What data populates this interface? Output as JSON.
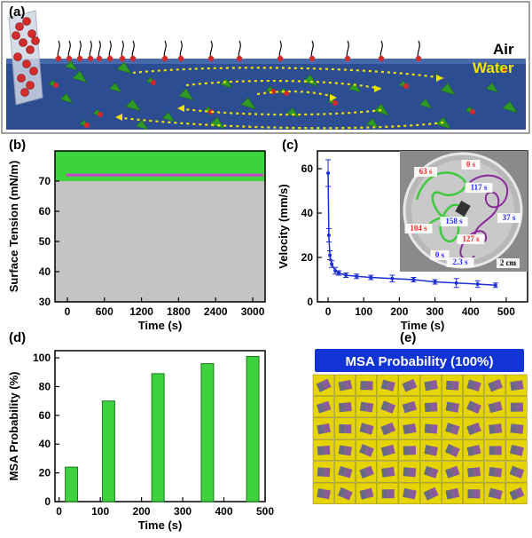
{
  "panels": {
    "a": {
      "letter": "(a)",
      "air_label": "Air",
      "water_label": "Water",
      "colors": {
        "water": "#2b4c8f",
        "air": "#ffffff",
        "air_text": "#000000",
        "water_text": "#f2e200",
        "arrow": "#f2e200",
        "particle": "#2f9a25",
        "head": "#d12b2b"
      }
    },
    "b": {
      "letter": "(b)"
    },
    "c": {
      "letter": "(c)",
      "inset_labels": [
        "63 s",
        "0 s",
        "117 s",
        "37 s",
        "158 s",
        "104 s",
        "127 s",
        "0 s",
        "2.3 s",
        "2 cm"
      ]
    },
    "d": {
      "letter": "(d)"
    },
    "e": {
      "letter": "(e)",
      "title": "MSA Probability (100%)",
      "grid_rows": 6,
      "grid_cols": 10,
      "colors": {
        "title_bg": "#1233d6",
        "title_text": "#ffffff",
        "cell": "#e6d400"
      }
    }
  },
  "chart_data": [
    {
      "panel": "b",
      "type": "line",
      "xlabel": "Time (s)",
      "ylabel": "Surface Tension (mN/m)",
      "xlim": [
        -200,
        3200
      ],
      "ylim": [
        30,
        80
      ],
      "xticks": [
        0,
        600,
        1200,
        1800,
        2400,
        3000
      ],
      "yticks": [
        30,
        40,
        50,
        60,
        70
      ],
      "band": [
        70,
        80
      ],
      "series": [
        {
          "x": [
            0,
            300,
            600,
            900,
            1200,
            1500,
            1800,
            2100,
            2400,
            2700,
            3000,
            3150
          ],
          "y": [
            72,
            72,
            72,
            72,
            72,
            72,
            72,
            72,
            72,
            72,
            72,
            72
          ]
        }
      ],
      "colors": {
        "band": "#3dd33d",
        "below": "#c4c4c4",
        "line": "#cc44cc"
      }
    },
    {
      "panel": "c",
      "type": "line",
      "xlabel": "Time (s)",
      "ylabel": "Velocity (mm/s)",
      "xlim": [
        -30,
        560
      ],
      "ylim": [
        0,
        68
      ],
      "xticks": [
        0,
        100,
        200,
        300,
        400,
        500
      ],
      "yticks": [
        0,
        20,
        40,
        60
      ],
      "series": [
        {
          "x": [
            0,
            2,
            5,
            10,
            20,
            30,
            50,
            80,
            120,
            180,
            240,
            300,
            360,
            420,
            470
          ],
          "y": [
            58,
            30,
            21,
            17,
            14,
            13,
            12,
            11.5,
            11,
            10.5,
            10,
            9,
            8.5,
            8,
            7.5
          ],
          "err": [
            6,
            3,
            2,
            1.5,
            1.5,
            1,
            1,
            1,
            1,
            1.5,
            1,
            1,
            2,
            1.5,
            1
          ]
        }
      ],
      "colors": {
        "line": "#1d2fd6"
      }
    },
    {
      "panel": "d",
      "type": "bar",
      "xlabel": "Time (s)",
      "ylabel": "MSA Probability (%)",
      "xlim": [
        -10,
        500
      ],
      "ylim": [
        0,
        105
      ],
      "xticks": [
        0,
        100,
        200,
        300,
        400,
        500
      ],
      "yticks": [
        0,
        20,
        40,
        60,
        80,
        100
      ],
      "x": [
        30,
        120,
        240,
        360,
        470
      ],
      "values": [
        24,
        70,
        89,
        96,
        101
      ],
      "bar_width": 30,
      "colors": {
        "bar": "#3ed23e"
      }
    }
  ]
}
